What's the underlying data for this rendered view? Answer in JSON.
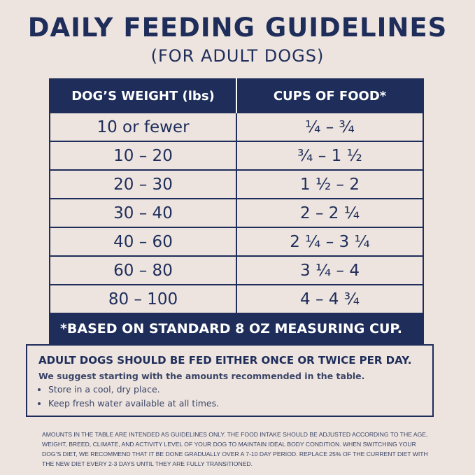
{
  "header": {
    "title": "DAILY FEEDING GUIDELINES",
    "subtitle": "(FOR ADULT DOGS)"
  },
  "table": {
    "columns": [
      "DOG’S WEIGHT (lbs)",
      "CUPS OF FOOD*"
    ],
    "rows": [
      [
        "10 or fewer",
        "¼ – ¾"
      ],
      [
        "10 – 20",
        "¾ – 1 ½"
      ],
      [
        "20 – 30",
        "1 ½ – 2"
      ],
      [
        "30 – 40",
        "2 – 2 ¼"
      ],
      [
        "40 – 60",
        "2 ¼ – 3 ¼"
      ],
      [
        "60 – 80",
        "3 ¼ – 4"
      ],
      [
        "80 – 100",
        "4 – 4 ¾"
      ]
    ],
    "footnote": "*BASED ON STANDARD 8 OZ MEASURING CUP."
  },
  "info": {
    "heading": "ADULT DOGS SHOULD BE FED EITHER ONCE OR TWICE PER DAY.",
    "intro": "We suggest starting with the amounts recommended in the table.",
    "bullets": [
      "Store in a cool, dry place.",
      "Keep fresh water available at all times."
    ]
  },
  "disclaimer": "AMOUNTS IN THE TABLE ARE INTENDED AS GUIDELINES ONLY. THE FOOD INTAKE SHOULD BE ADJUSTED ACCORDING TO THE AGE, WEIGHT, BREED, CLIMATE, AND ACTIVITY LEVEL OF YOUR DOG TO MAINTAIN IDEAL BODY CONDITION. WHEN SWITCHING YOUR DOG’S DIET, WE RECOMMEND THAT IT BE DONE GRADUALLY OVER A 7-10 DAY PERIOD. REPLACE 25% OF THE CURRENT DIET WITH THE NEW DIET EVERY 2-3 DAYS UNTIL THEY ARE FULLY TRANSITIONED."
}
